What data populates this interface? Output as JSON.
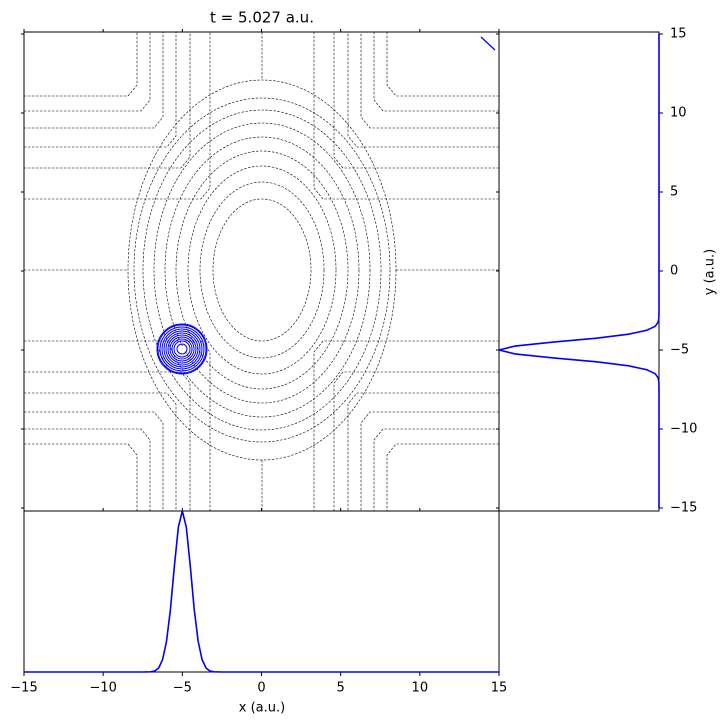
{
  "chart_data": {
    "type": "line",
    "title": "t = 5.027 a.u.",
    "x_label": "x (a.u.)",
    "y_label": "y (a.u.)",
    "xlim": [
      -15,
      15
    ],
    "xticks": [
      {
        "value": -15,
        "label": "−15"
      },
      {
        "value": -10,
        "label": "−10"
      },
      {
        "value": -5,
        "label": "−5"
      },
      0,
      5,
      10,
      15
    ],
    "ylim": [
      -15,
      15
    ],
    "yticks": [
      {
        "value": -15,
        "label": "−15"
      },
      {
        "value": -10,
        "label": "−10"
      },
      {
        "value": -5,
        "label": "−5"
      },
      0,
      5,
      10,
      15
    ],
    "x": [
      -15,
      -8,
      -7.5,
      -7,
      -6.75,
      -6.5,
      -6.25,
      -6,
      -5.75,
      -5.5,
      -5.25,
      -5,
      -4.75,
      -4.5,
      -4.25,
      -4,
      -3.75,
      -3.5,
      -3.25,
      -3,
      -2.5,
      -2,
      15
    ],
    "series": [
      {
        "color": "#0000ff",
        "orientation": "bottom",
        "values": [
          0,
          0,
          0,
          0.001,
          0.006,
          0.024,
          0.076,
          0.19,
          0.39,
          0.66,
          0.9,
          1,
          0.9,
          0.66,
          0.39,
          0.19,
          0.076,
          0.024,
          0.006,
          0.001,
          0,
          0,
          0
        ]
      },
      {
        "color": "#0000ff",
        "orientation": "right",
        "values": [
          0,
          0,
          0,
          0.001,
          0.006,
          0.024,
          0.076,
          0.19,
          0.39,
          0.66,
          0.9,
          1,
          0.9,
          0.66,
          0.39,
          0.19,
          0.076,
          0.024,
          0.006,
          0.001,
          0,
          0,
          0
        ]
      }
    ]
  }
}
